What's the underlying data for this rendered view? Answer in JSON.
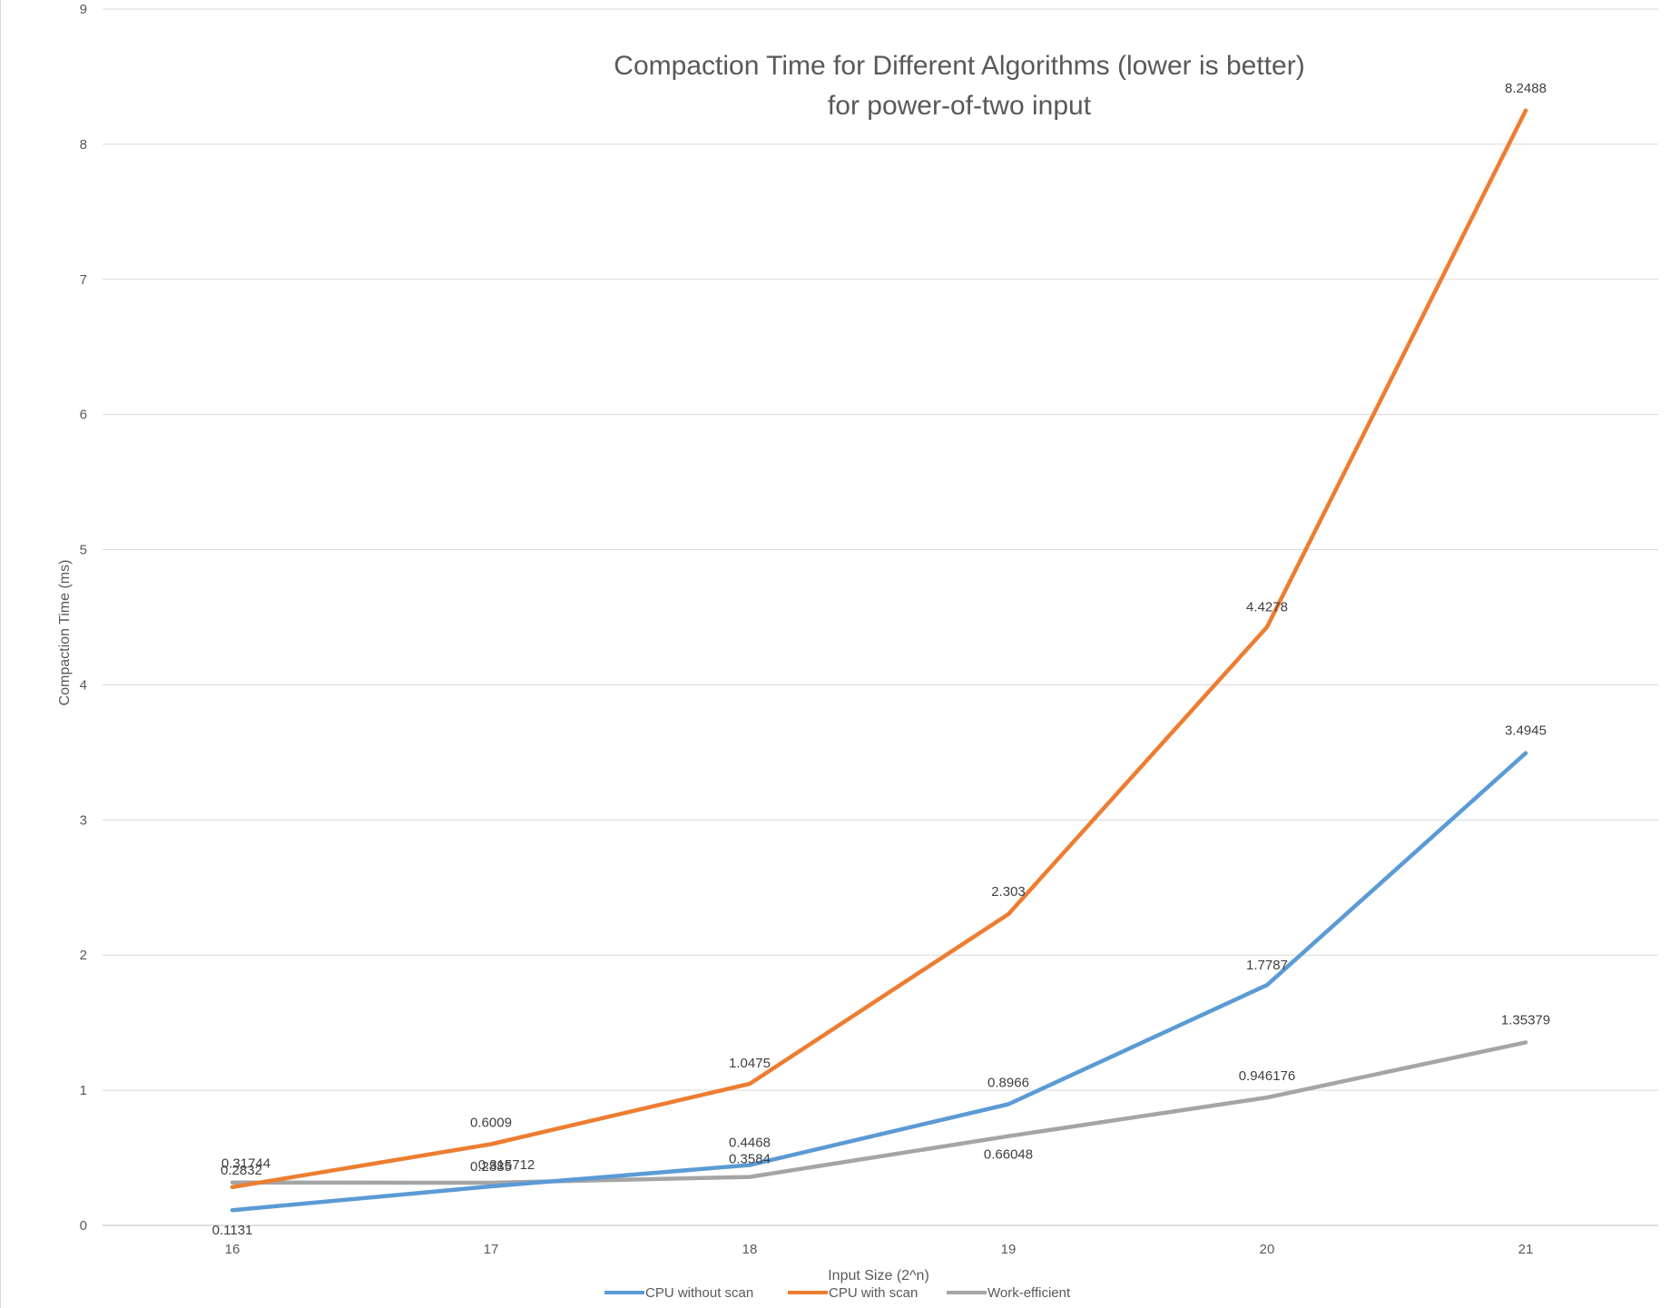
{
  "chart_data": {
    "type": "line",
    "title": "Compaction Time for Different Algorithms (lower is better)",
    "subtitle": "for power-of-two input",
    "xlabel": "Input Size (2^n)",
    "ylabel": "Compaction Time (ms)",
    "categories": [
      "16",
      "17",
      "18",
      "19",
      "20",
      "21"
    ],
    "x": [
      16,
      17,
      18,
      19,
      20,
      21
    ],
    "ylim": [
      0,
      9
    ],
    "yticks": [
      "0",
      "1",
      "2",
      "3",
      "4",
      "5",
      "6",
      "7",
      "8",
      "9"
    ],
    "grid": true,
    "legend_position": "bottom",
    "series": [
      {
        "name": "CPU without scan",
        "color": "#5b9bd5",
        "values": [
          0.1131,
          0.2885,
          0.4468,
          0.8966,
          1.7787,
          3.4945
        ],
        "labels": [
          "0.1131",
          "0.2885",
          "0.4468",
          "0.8966",
          "1.7787",
          "3.4945"
        ]
      },
      {
        "name": "CPU with scan",
        "color": "#ed7d31",
        "values": [
          0.2832,
          0.6009,
          1.0475,
          2.303,
          4.4278,
          8.2488
        ],
        "labels": [
          "0.2832",
          "0.6009",
          "1.0475",
          "2.303",
          "4.4278",
          "8.2488"
        ]
      },
      {
        "name": "Work-efficient",
        "color": "#a5a5a5",
        "values": [
          0.31744,
          0.315712,
          0.3584,
          0.66048,
          0.946176,
          1.35379
        ],
        "labels": [
          "0.31744",
          "0.315712",
          "0.3584",
          "0.66048",
          "0.946176",
          "1.35379"
        ]
      }
    ]
  }
}
